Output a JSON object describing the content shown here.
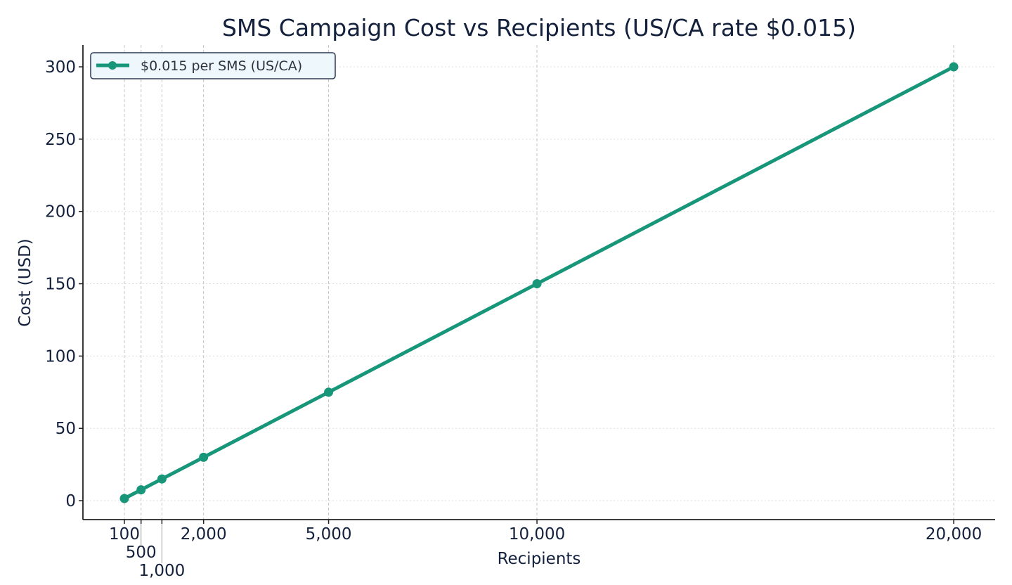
{
  "chart_data": {
    "type": "line",
    "title": "SMS Campaign Cost vs Recipients (US/CA rate $0.015)",
    "xlabel": "Recipients",
    "ylabel": "Cost (USD)",
    "xlim": [
      -895,
      20994
    ],
    "ylim": [
      -13.1,
      315.1
    ],
    "x_ticks": [
      100,
      500,
      1000,
      2000,
      5000,
      10000,
      20000
    ],
    "x_tick_labels": [
      "100",
      "500",
      "1,000",
      "2,000",
      "5,000",
      "10,000",
      "20,000"
    ],
    "y_ticks": [
      0,
      50,
      100,
      150,
      200,
      250,
      300
    ],
    "y_tick_labels": [
      "0",
      "50",
      "100",
      "150",
      "200",
      "250",
      "300"
    ],
    "grid": true,
    "legend_position": "top-left",
    "series": [
      {
        "name": "$0.015 per SMS (US/CA)",
        "color": "#17967a",
        "marker": "circle",
        "x": [
          100,
          500,
          1000,
          2000,
          5000,
          10000,
          20000
        ],
        "y": [
          1.5,
          7.5,
          15,
          30,
          75,
          150,
          300
        ]
      }
    ]
  }
}
